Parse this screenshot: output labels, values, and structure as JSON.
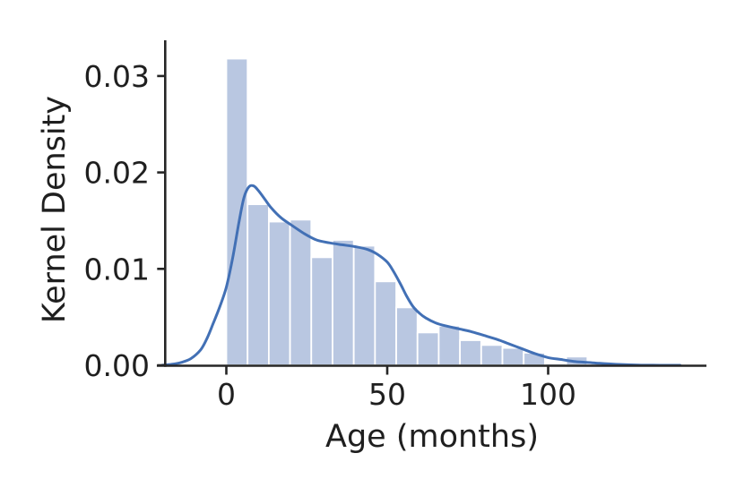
{
  "chart_data": {
    "type": "histogram+kde",
    "title": "",
    "xlabel": "Age (months)",
    "ylabel": "Kernel Density",
    "xlim": [
      -21.6,
      149.2
    ],
    "ylim": [
      0,
      0.0337
    ],
    "grid": false,
    "legend": "none",
    "x_ticks": [
      {
        "value": 0,
        "label": "0"
      },
      {
        "value": 50,
        "label": "50"
      },
      {
        "value": 100,
        "label": "100"
      }
    ],
    "y_ticks": [
      {
        "value": 0.0,
        "label": "0.00"
      },
      {
        "value": 0.01,
        "label": "0.01"
      },
      {
        "value": 0.02,
        "label": "0.02"
      },
      {
        "value": 0.03,
        "label": "0.03"
      }
    ],
    "histogram": {
      "bin_width_months": 6.6,
      "bin_edges": [
        0,
        6.6,
        13.2,
        19.8,
        26.4,
        33.0,
        39.6,
        46.2,
        52.8,
        59.4,
        66.0,
        72.6,
        79.2,
        85.8,
        92.4,
        99.0,
        105.6,
        112.2,
        118.8
      ],
      "densities": [
        0.0318,
        0.0167,
        0.0149,
        0.0151,
        0.0112,
        0.013,
        0.0124,
        0.0087,
        0.006,
        0.0034,
        0.0041,
        0.0026,
        0.0021,
        0.0018,
        0.0013,
        0.0002,
        0.0009,
        0.0
      ]
    },
    "kde": {
      "peak": {
        "month": 8,
        "density": 0.0186
      },
      "points": [
        [
          -20,
          0.0
        ],
        [
          -17,
          0.0001
        ],
        [
          -14,
          0.0003
        ],
        [
          -11,
          0.0007
        ],
        [
          -8,
          0.0016
        ],
        [
          -6,
          0.0028
        ],
        [
          -4,
          0.0044
        ],
        [
          -2,
          0.0061
        ],
        [
          0,
          0.0081
        ],
        [
          2,
          0.0112
        ],
        [
          4,
          0.015
        ],
        [
          5.5,
          0.0174
        ],
        [
          7,
          0.0185
        ],
        [
          8.5,
          0.0186
        ],
        [
          10,
          0.0181
        ],
        [
          12,
          0.0172
        ],
        [
          14,
          0.0163
        ],
        [
          17,
          0.0153
        ],
        [
          20,
          0.0146
        ],
        [
          24,
          0.0137
        ],
        [
          28,
          0.013
        ],
        [
          32,
          0.0127
        ],
        [
          36,
          0.0125
        ],
        [
          40,
          0.0123
        ],
        [
          44,
          0.012
        ],
        [
          47,
          0.0115
        ],
        [
          50,
          0.0107
        ],
        [
          52,
          0.0097
        ],
        [
          54,
          0.0085
        ],
        [
          56,
          0.0072
        ],
        [
          58,
          0.0061
        ],
        [
          60,
          0.0054
        ],
        [
          62,
          0.0049
        ],
        [
          65,
          0.0044
        ],
        [
          68,
          0.0041
        ],
        [
          72,
          0.0038
        ],
        [
          76,
          0.0035
        ],
        [
          80,
          0.0031
        ],
        [
          84,
          0.0027
        ],
        [
          88,
          0.0022
        ],
        [
          92,
          0.0017
        ],
        [
          96,
          0.0012
        ],
        [
          100,
          0.0008
        ],
        [
          104,
          0.0006
        ],
        [
          108,
          0.0004
        ],
        [
          112,
          0.0003
        ],
        [
          116,
          0.0002
        ],
        [
          121,
          0.0001
        ],
        [
          128,
          3e-05
        ],
        [
          135,
          0.0
        ],
        [
          141,
          0.0
        ]
      ]
    },
    "colors": {
      "bar_fill": "#b9c7e1",
      "bar_edge": "#ffffff",
      "kde_line": "#4270b5",
      "axis": "#262626",
      "text": "#1f1f1f"
    }
  }
}
